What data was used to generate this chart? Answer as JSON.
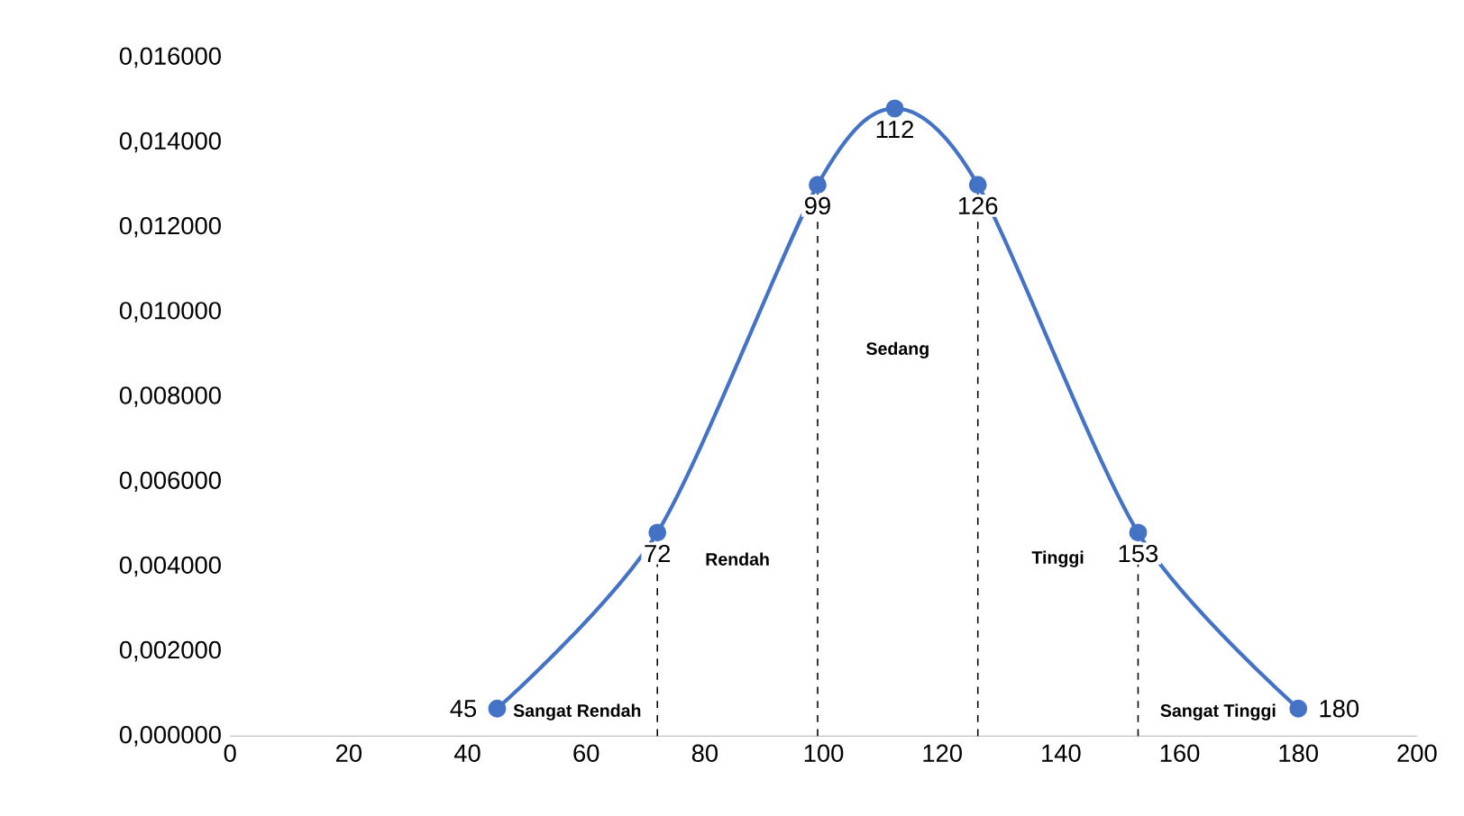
{
  "chart_data": {
    "type": "line",
    "x": [
      45,
      72,
      99,
      112,
      126,
      153,
      180
    ],
    "series": [
      {
        "color": "#4472c4",
        "values": [
          0.00065,
          0.0048,
          0.013,
          0.0148,
          0.013,
          0.0048,
          0.00065
        ]
      }
    ],
    "xlim": [
      0,
      200
    ],
    "xticks": [
      0,
      20,
      40,
      60,
      80,
      100,
      120,
      140,
      160,
      180,
      200
    ],
    "ylim": [
      0,
      0.016
    ],
    "yticks": [
      {
        "value": 0,
        "label": "0,000000"
      },
      {
        "value": 0.002,
        "label": "0,002000"
      },
      {
        "value": 0.004,
        "label": "0,004000"
      },
      {
        "value": 0.006,
        "label": "0,006000"
      },
      {
        "value": 0.008,
        "label": "0,008000"
      },
      {
        "value": 0.01,
        "label": "0,010000"
      },
      {
        "value": 0.012,
        "label": "0,012000"
      },
      {
        "value": 0.014,
        "label": "0,014000"
      },
      {
        "value": 0.016,
        "label": "0,016000"
      }
    ],
    "marker": "circle",
    "line_style": "solid",
    "grid": false,
    "ref_lines": [
      {
        "axis": "x",
        "value": 72,
        "line_style": "dashed",
        "color": "#000000"
      },
      {
        "axis": "x",
        "value": 99,
        "line_style": "dashed",
        "color": "#000000"
      },
      {
        "axis": "x",
        "value": 126,
        "line_style": "dashed",
        "color": "#000000"
      },
      {
        "axis": "x",
        "value": 153,
        "line_style": "dashed",
        "color": "#000000"
      }
    ],
    "annotations": [
      "Sangat Rendah",
      "Rendah",
      "Sedang",
      "Tinggi",
      "Sangat Tinggi",
      {
        "text": "45",
        "x": 45,
        "y": 0.00065
      },
      {
        "text": "72",
        "x": 72,
        "y": 0.0048
      },
      {
        "text": "99",
        "x": 99,
        "y": 0.013
      },
      {
        "text": "112",
        "x": 112,
        "y": 0.0148
      },
      {
        "text": "126",
        "x": 126,
        "y": 0.013
      },
      {
        "text": "153",
        "x": 153,
        "y": 0.0048
      },
      {
        "text": "180",
        "x": 180,
        "y": 0.00065
      }
    ]
  }
}
